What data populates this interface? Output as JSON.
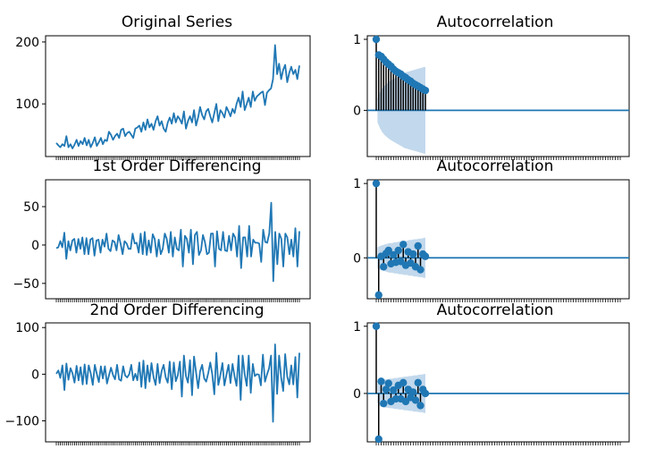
{
  "colors": {
    "line": "#1f77b4",
    "stem": "#000000",
    "confidence_band": "#aecbe6",
    "axes": "#000000",
    "background": "#ffffff"
  },
  "chart_data": [
    {
      "type": "line",
      "title": "Original Series",
      "xlabel": "",
      "ylabel": "",
      "ylim": [
        15,
        210
      ],
      "yticks": [
        100,
        200
      ],
      "grid": false,
      "legend": "none",
      "series": [
        {
          "values": [
            37,
            33,
            30,
            35,
            32,
            48,
            30,
            35,
            28,
            34,
            42,
            32,
            40,
            35,
            45,
            33,
            42,
            30,
            37,
            46,
            32,
            38,
            45,
            35,
            42,
            40,
            55,
            50,
            42,
            48,
            52,
            45,
            58,
            60,
            48,
            53,
            55,
            50,
            45,
            60,
            62,
            65,
            55,
            70,
            58,
            75,
            62,
            68,
            58,
            72,
            80,
            65,
            72,
            60,
            55,
            70,
            78,
            68,
            85,
            70,
            80,
            75,
            68,
            88,
            60,
            72,
            80,
            70,
            90,
            65,
            78,
            95,
            82,
            75,
            88,
            92,
            80,
            70,
            85,
            100,
            72,
            90,
            85,
            78,
            95,
            88,
            80,
            92,
            85,
            100,
            110,
            95,
            120,
            90,
            100,
            110,
            95,
            120,
            105,
            112,
            115,
            118,
            120,
            98,
            118,
            122,
            125,
            140,
            195,
            148,
            165,
            140,
            155,
            163,
            135,
            150,
            160,
            148,
            155,
            140,
            162
          ]
        }
      ]
    },
    {
      "type": "bar",
      "title": "Autocorrelation",
      "xlabel": "",
      "ylabel": "",
      "ylim": [
        -0.65,
        1.05
      ],
      "yticks": [
        0,
        1
      ],
      "grid": false,
      "legend": "none",
      "lags": [
        0,
        1,
        2,
        3,
        4,
        5,
        6,
        7,
        8,
        9,
        10,
        11,
        12,
        13,
        14,
        15,
        16,
        17,
        18,
        19,
        20
      ],
      "values": [
        1.0,
        0.78,
        0.76,
        0.72,
        0.68,
        0.65,
        0.62,
        0.58,
        0.55,
        0.53,
        0.51,
        0.48,
        0.46,
        0.43,
        0.41,
        0.38,
        0.36,
        0.34,
        0.32,
        0.3,
        0.28
      ],
      "confidence_band": [
        0,
        0.17,
        0.25,
        0.31,
        0.35,
        0.38,
        0.41,
        0.43,
        0.45,
        0.47,
        0.49,
        0.51,
        0.53,
        0.54,
        0.55,
        0.56,
        0.57,
        0.58,
        0.59,
        0.6,
        0.61
      ]
    },
    {
      "type": "line",
      "title": "1st Order Differencing",
      "xlabel": "",
      "ylabel": "",
      "ylim": [
        -70,
        85
      ],
      "yticks": [
        -50,
        0,
        50
      ],
      "grid": false,
      "legend": "none",
      "series": [
        {
          "values": [
            -4,
            -3,
            5,
            -3,
            16,
            -18,
            5,
            -7,
            6,
            8,
            -10,
            8,
            -5,
            10,
            -12,
            9,
            -12,
            7,
            9,
            -14,
            6,
            7,
            -10,
            7,
            -2,
            15,
            -5,
            -8,
            6,
            4,
            -7,
            13,
            2,
            -12,
            5,
            2,
            -5,
            -5,
            15,
            2,
            3,
            -10,
            15,
            -12,
            17,
            -13,
            6,
            -10,
            14,
            8,
            -15,
            7,
            -12,
            -5,
            15,
            8,
            -10,
            17,
            -15,
            10,
            -5,
            -7,
            20,
            -28,
            12,
            8,
            -10,
            20,
            -25,
            13,
            17,
            -13,
            -7,
            13,
            4,
            -12,
            -10,
            15,
            15,
            -28,
            18,
            -5,
            -7,
            17,
            -7,
            -8,
            12,
            -7,
            15,
            10,
            -15,
            25,
            -30,
            10,
            10,
            -15,
            25,
            -15,
            7,
            3,
            3,
            2,
            -22,
            20,
            4,
            3,
            15,
            55,
            -47,
            17,
            -25,
            15,
            8,
            -28,
            15,
            10,
            -12,
            7,
            -15,
            22,
            -28,
            18
          ]
        }
      ]
    },
    {
      "type": "bar",
      "title": "Autocorrelation",
      "xlabel": "",
      "ylabel": "",
      "ylim": [
        -0.55,
        1.05
      ],
      "yticks": [
        0,
        1
      ],
      "grid": false,
      "legend": "none",
      "lags": [
        0,
        1,
        2,
        3,
        4,
        5,
        6,
        7,
        8,
        9,
        10,
        11,
        12,
        13,
        14,
        15,
        16,
        17,
        18,
        19,
        20
      ],
      "values": [
        1.0,
        -0.5,
        0.02,
        -0.12,
        0.06,
        0.1,
        -0.08,
        0.04,
        -0.06,
        0.1,
        -0.05,
        0.18,
        -0.1,
        0.08,
        -0.07,
        0.05,
        -0.12,
        0.16,
        -0.16,
        0.05,
        0.02
      ],
      "confidence_band": [
        0,
        0.14,
        0.16,
        0.17,
        0.18,
        0.19,
        0.2,
        0.2,
        0.21,
        0.21,
        0.22,
        0.22,
        0.23,
        0.23,
        0.24,
        0.24,
        0.25,
        0.25,
        0.26,
        0.26,
        0.27
      ]
    },
    {
      "type": "line",
      "title": "2nd Order Differencing",
      "xlabel": "",
      "ylabel": "",
      "ylim": [
        -145,
        110
      ],
      "yticks": [
        -100,
        0,
        100
      ],
      "grid": false,
      "legend": "none",
      "series": [
        {
          "values": [
            1,
            8,
            -8,
            19,
            -34,
            23,
            -12,
            13,
            2,
            -18,
            18,
            -13,
            15,
            -22,
            21,
            -21,
            19,
            2,
            -23,
            20,
            1,
            -17,
            17,
            -9,
            17,
            -20,
            -3,
            14,
            -2,
            -11,
            20,
            -11,
            -14,
            17,
            -3,
            -7,
            0,
            20,
            -13,
            1,
            -13,
            25,
            -27,
            29,
            -30,
            19,
            -16,
            24,
            -6,
            -23,
            22,
            -19,
            7,
            20,
            -7,
            -18,
            27,
            -32,
            25,
            -15,
            -2,
            27,
            -48,
            40,
            -4,
            -18,
            30,
            -45,
            38,
            4,
            -30,
            6,
            20,
            -9,
            -16,
            2,
            25,
            0,
            -43,
            46,
            -23,
            -2,
            24,
            -24,
            -1,
            20,
            -19,
            22,
            -5,
            -25,
            40,
            -55,
            40,
            0,
            -25,
            40,
            -40,
            22,
            -4,
            0,
            -1,
            -24,
            42,
            -16,
            -1,
            12,
            40,
            -102,
            64,
            -42,
            40,
            -7,
            -36,
            43,
            -5,
            -22,
            19,
            -22,
            37,
            -50,
            46
          ]
        }
      ]
    },
    {
      "type": "bar",
      "title": "Autocorrelation",
      "xlabel": "",
      "ylabel": "",
      "ylim": [
        -0.72,
        1.05
      ],
      "yticks": [
        0,
        1
      ],
      "grid": false,
      "legend": "none",
      "lags": [
        0,
        1,
        2,
        3,
        4,
        5,
        6,
        7,
        8,
        9,
        10,
        11,
        12,
        13,
        14,
        15,
        16,
        17,
        18,
        19,
        20
      ],
      "values": [
        1.0,
        -0.68,
        0.18,
        -0.15,
        0.06,
        0.15,
        -0.12,
        0.05,
        -0.08,
        0.12,
        -0.08,
        0.16,
        -0.12,
        0.06,
        -0.06,
        0.02,
        -0.1,
        0.16,
        -0.18,
        0.06,
        0.0
      ],
      "confidence_band": [
        0,
        0.14,
        0.19,
        0.2,
        0.21,
        0.21,
        0.22,
        0.22,
        0.23,
        0.23,
        0.24,
        0.24,
        0.25,
        0.25,
        0.26,
        0.26,
        0.27,
        0.27,
        0.28,
        0.28,
        0.29
      ]
    }
  ]
}
